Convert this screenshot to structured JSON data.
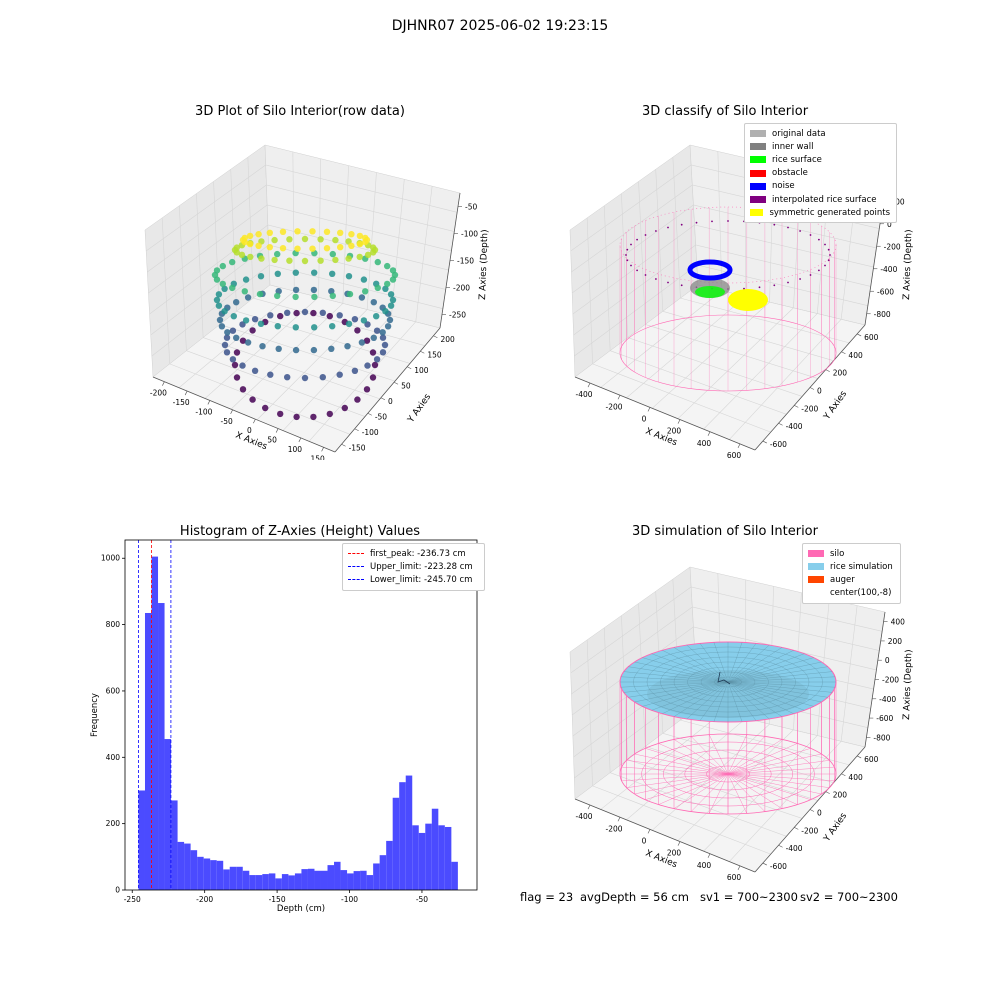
{
  "figure": {
    "suptitle": "DJHNR07 2025-06-02 19:23:15",
    "footer": {
      "flag": "flag = 23",
      "avg_depth": "avgDepth = 56 cm",
      "sv1": "sv1 = 700~2300",
      "sv2": "sv2 = 700~2300"
    }
  },
  "chart_data": [
    {
      "type": "scatter3d",
      "title": "3D Plot of Silo Interior(row data)",
      "xlabel": "X Axies",
      "ylabel": "Y Axies",
      "zlabel": "Z Axies (Depth)",
      "x_ticks": [
        "-200",
        "-150",
        "-100",
        "-50",
        "0",
        "50",
        "100",
        "150"
      ],
      "y_ticks": [
        "-150",
        "-100",
        "-50",
        "0",
        "50",
        "100",
        "150",
        "200"
      ],
      "z_ticks": [
        "-250",
        "-200",
        "-150",
        "-100",
        "-50"
      ],
      "colormap": "viridis",
      "colors": {
        "low": "#440154",
        "mid": "#31688e",
        "mid2": "#35b779",
        "high": "#fde725"
      }
    },
    {
      "type": "scatter3d",
      "title": "3D classify of Silo Interior",
      "xlabel": "X Axies",
      "ylabel": "Y Axies",
      "zlabel": "Z Axies (Depth)",
      "x_ticks": [
        "-400",
        "-200",
        "0",
        "200",
        "400",
        "600"
      ],
      "y_ticks": [
        "-600",
        "-400",
        "-200",
        "0",
        "200",
        "400",
        "600"
      ],
      "z_ticks": [
        "-800",
        "-600",
        "-400",
        "-200",
        "0",
        "200"
      ],
      "legend": [
        {
          "label": "original data",
          "color": "#b0b0b0"
        },
        {
          "label": "inner wall",
          "color": "#808080"
        },
        {
          "label": "rice surface",
          "color": "#00ff00"
        },
        {
          "label": "obstacle",
          "color": "#ff0000"
        },
        {
          "label": "noise",
          "color": "#0000ff"
        },
        {
          "label": "interpolated rice surface",
          "color": "#800080"
        },
        {
          "label": "symmetric generated points",
          "color": "#ffff00"
        }
      ],
      "wire_color": "#ff69b4"
    },
    {
      "type": "bar",
      "title": "Histogram of Z-Axies (Height) Values",
      "xlabel": "Depth (cm)",
      "ylabel": "Frequency",
      "xlim": [
        -255,
        -12
      ],
      "ylim": [
        0,
        1055
      ],
      "x_ticks": [
        -250,
        -200,
        -150,
        -100,
        -50
      ],
      "y_ticks": [
        0,
        200,
        400,
        600,
        800,
        1000
      ],
      "bar_color": "#4b4bff",
      "bin_start": -245.7,
      "bin_width": 4.5,
      "values": [
        300,
        835,
        1005,
        865,
        455,
        270,
        145,
        140,
        120,
        100,
        95,
        90,
        88,
        62,
        70,
        70,
        58,
        45,
        45,
        48,
        50,
        35,
        48,
        44,
        50,
        63,
        64,
        58,
        58,
        75,
        85,
        60,
        50,
        57,
        58,
        45,
        80,
        105,
        148,
        278,
        325,
        345,
        195,
        172,
        200,
        245,
        195,
        190,
        85
      ],
      "vlines": [
        {
          "label": "first_peak: -236.73 cm",
          "x": -236.73,
          "color": "#ff0000"
        },
        {
          "label": "Upper_limit: -223.28 cm",
          "x": -223.28,
          "color": "#0000ff"
        },
        {
          "label": "Lower_limit: -245.70 cm",
          "x": -245.7,
          "color": "#0000ff"
        }
      ]
    },
    {
      "type": "surface3d",
      "title": "3D simulation of Silo Interior",
      "xlabel": "X Axies",
      "ylabel": "Y Axies",
      "zlabel": "Z Axies (Depth)",
      "x_ticks": [
        "-400",
        "-200",
        "0",
        "200",
        "400",
        "600"
      ],
      "y_ticks": [
        "-600",
        "-400",
        "-200",
        "0",
        "200",
        "400",
        "600"
      ],
      "z_ticks": [
        "-800",
        "-600",
        "-400",
        "-200",
        "0",
        "200",
        "400"
      ],
      "legend": [
        {
          "label": "silo",
          "color": "#ff69b4"
        },
        {
          "label": "rice simulation",
          "color": "#87ceeb"
        },
        {
          "label": "auger",
          "color": "#ff4500"
        },
        {
          "label": "center(100,-8)",
          "color": ""
        }
      ]
    }
  ]
}
